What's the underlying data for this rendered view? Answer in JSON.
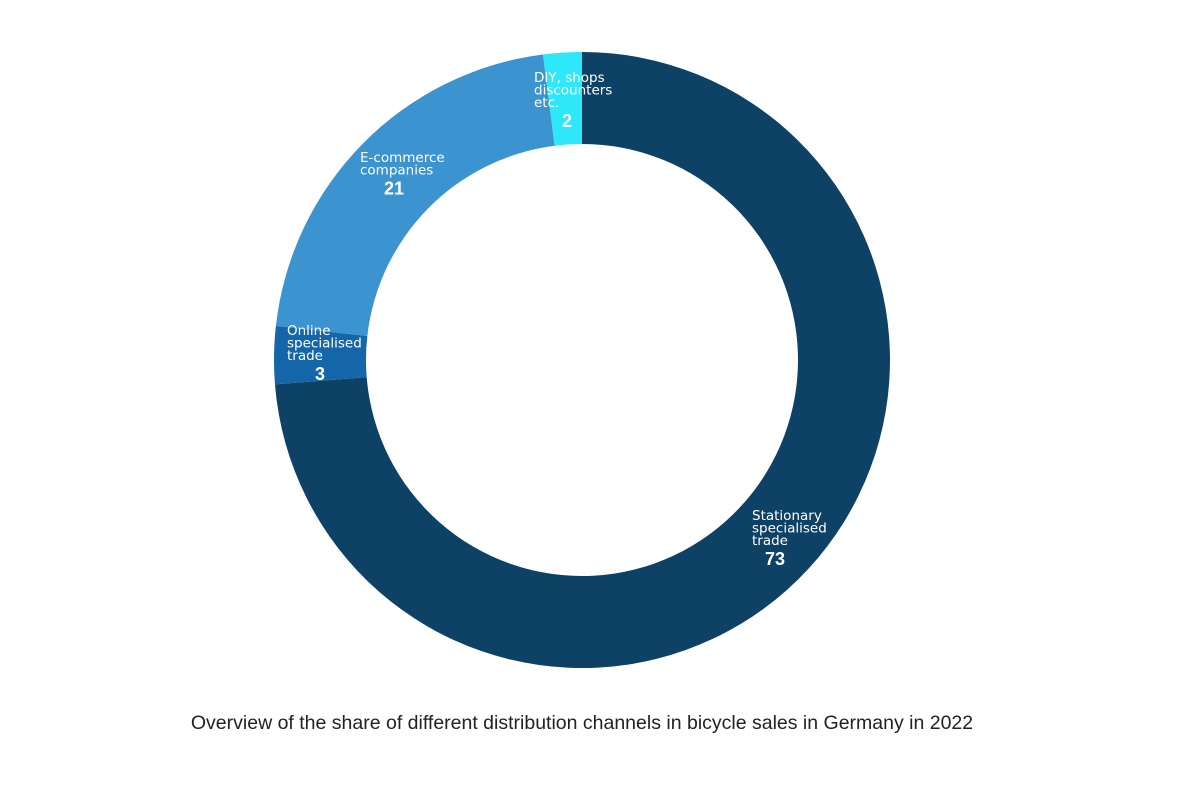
{
  "chart_data": {
    "type": "pie",
    "donut": true,
    "title": "Overview of the share of different distribution channels in bicycle sales in Germany in 2022",
    "slices": [
      {
        "label": [
          "Stationary",
          "specialised",
          "trade"
        ],
        "value": 73,
        "color": "#0e4166"
      },
      {
        "label": [
          "Online",
          "specialised",
          "trade"
        ],
        "value": 3,
        "color": "#1566a9"
      },
      {
        "label": [
          "E-commerce",
          "companies"
        ],
        "value": 21,
        "color": "#3b93d0"
      },
      {
        "label": [
          "DIY, shops",
          "discounters",
          "etc."
        ],
        "value": 2,
        "color": "#2de8f8"
      }
    ],
    "start_angle_deg": 0,
    "direction": "clockwise"
  }
}
